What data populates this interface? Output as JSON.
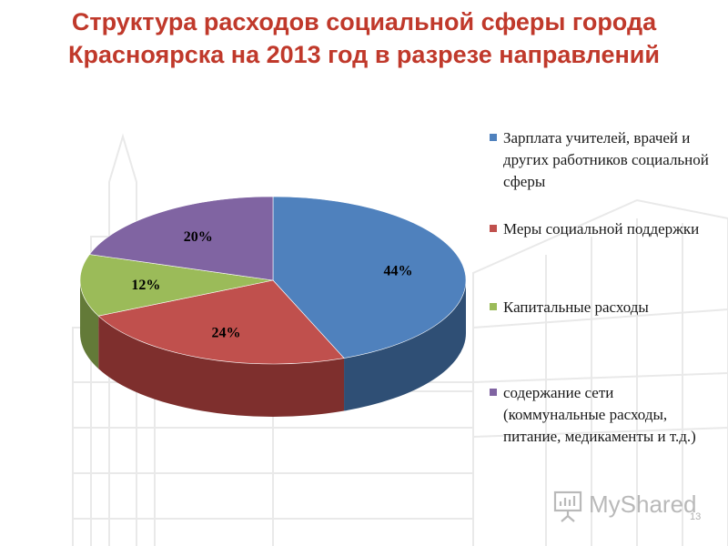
{
  "slide": {
    "title": "Структура расходов социальной сферы города Красноярска на 2013 год в разрезе направлений",
    "title_color": "#c0392b",
    "page_number": "13",
    "watermark": "MyShared"
  },
  "chart_data": {
    "type": "pie",
    "style": "3d",
    "legend_position": "right",
    "series": [
      {
        "name": "Зарплата учителей, врачей и других работников социальной сферы",
        "value": 44,
        "label": "44%",
        "color": "#4f81bd",
        "side": "#2f4f75"
      },
      {
        "name": "Меры социальной поддержки",
        "value": 24,
        "label": "24%",
        "color": "#c0504d",
        "side": "#7e2f2d"
      },
      {
        "name": "Капитальные расходы",
        "value": 12,
        "label": "12%",
        "color": "#9bbb59",
        "side": "#637a38"
      },
      {
        "name": "содержание сети (коммунальные расходы, питание, медикаменты и т.д.)",
        "value": 20,
        "label": "20%",
        "color": "#8064a2",
        "side": "#543f6d"
      }
    ]
  }
}
